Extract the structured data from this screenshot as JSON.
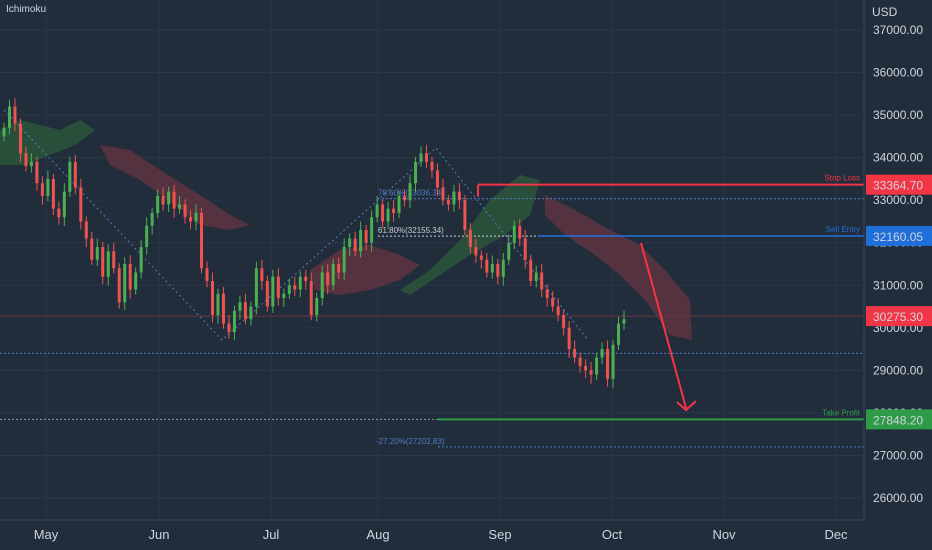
{
  "indicator_label": "Ichimoku",
  "currency_label": "USD",
  "colors": {
    "background": "#222d3c",
    "bull": "#4caf50",
    "bear": "#ef5350",
    "stop_loss": "#f23645",
    "sell_entry": "#1e6fd9",
    "take_profit": "#2e9b48",
    "fib": "#4d7ec4",
    "cloud_green": "#2c5e3a",
    "cloud_red": "#6b3540"
  },
  "chart_data": {
    "type": "candlestick",
    "ylim": [
      25500,
      37500
    ],
    "yticks": [
      "26000.00",
      "27000.00",
      "28000.00",
      "29000.00",
      "30000.00",
      "31000.00",
      "32000.00",
      "33000.00",
      "34000.00",
      "35000.00",
      "36000.00",
      "37000.00"
    ],
    "months": [
      "May",
      "Jun",
      "Jul",
      "Aug",
      "Sep",
      "Oct",
      "Nov",
      "Dec"
    ],
    "levels": {
      "stop_loss": {
        "label": "Stop Loss",
        "tag": "33364.70",
        "value": 33364.7
      },
      "sell_entry": {
        "label": "Sell Entry",
        "tag": "32160.05",
        "value": 32160.05
      },
      "take_profit": {
        "label": "Take Profit",
        "tag": "27848.20",
        "value": 27848.2
      },
      "current": {
        "tag": "30275.30",
        "value": 30275.3
      }
    },
    "fib_labels": [
      {
        "text": "78.60%(33036.34)",
        "value": 33036.34
      },
      {
        "text": "61.80%(32155.34)",
        "value": 32155.34
      },
      {
        "text": "-27.20%(27202.83)",
        "value": 27202.83
      }
    ],
    "closes": [
      34700,
      35200,
      34800,
      34100,
      33800,
      33900,
      33400,
      33100,
      33500,
      32800,
      32600,
      33200,
      33900,
      33300,
      32500,
      32100,
      31600,
      31900,
      31200,
      31800,
      31400,
      30600,
      31500,
      30900,
      31300,
      31900,
      32400,
      32700,
      33100,
      32900,
      33200,
      32800,
      32900,
      32600,
      32500,
      32700,
      31400,
      31100,
      30300,
      30800,
      30100,
      29900,
      30400,
      30600,
      30200,
      30500,
      31400,
      31100,
      30500,
      31200,
      30700,
      30800,
      31000,
      30900,
      31200,
      31100,
      30300,
      30700,
      31300,
      31000,
      31500,
      31300,
      31900,
      32100,
      31800,
      32300,
      32000,
      32600,
      32900,
      32500,
      32800,
      32700,
      33100,
      33000,
      33400,
      33900,
      34100,
      33900,
      33700,
      33300,
      33000,
      32900,
      33200,
      33000,
      32300,
      31900,
      31700,
      31600,
      31300,
      31500,
      31200,
      31600,
      32000,
      32400,
      32100,
      31600,
      31100,
      31300,
      30900,
      30700,
      30500,
      30300,
      30000,
      29500,
      29300,
      29100,
      29000,
      28900,
      29300,
      29500,
      28800,
      29600,
      30100,
      30200
    ]
  }
}
